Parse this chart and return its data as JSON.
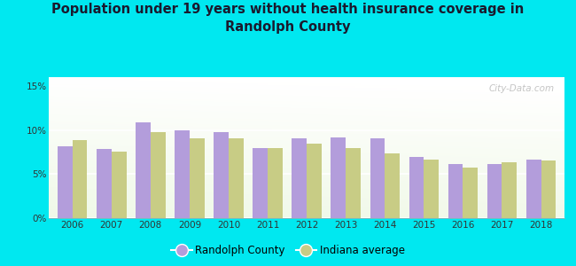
{
  "title": "Population under 19 years without health insurance coverage in\nRandolph County",
  "years": [
    2006,
    2007,
    2008,
    2009,
    2010,
    2011,
    2012,
    2013,
    2014,
    2015,
    2016,
    2017,
    2018
  ],
  "randolph": [
    8.2,
    7.8,
    10.9,
    10.0,
    9.8,
    7.9,
    9.1,
    9.2,
    9.1,
    6.9,
    6.1,
    6.1,
    6.6
  ],
  "indiana": [
    8.9,
    7.5,
    9.8,
    9.1,
    9.1,
    8.0,
    8.5,
    8.0,
    7.3,
    6.6,
    5.7,
    6.3,
    6.5
  ],
  "randolph_color": "#b39ddb",
  "indiana_color": "#c8cc85",
  "background_outer": "#00e8f0",
  "title_color": "#1a1a2e",
  "ylim": [
    0,
    16
  ],
  "yticks": [
    0,
    5,
    10,
    15
  ],
  "ytick_labels": [
    "0%",
    "5%",
    "10%",
    "15%"
  ],
  "watermark": "City-Data.com",
  "legend_randolph": "Randolph County",
  "legend_indiana": "Indiana average",
  "bar_width": 0.38
}
